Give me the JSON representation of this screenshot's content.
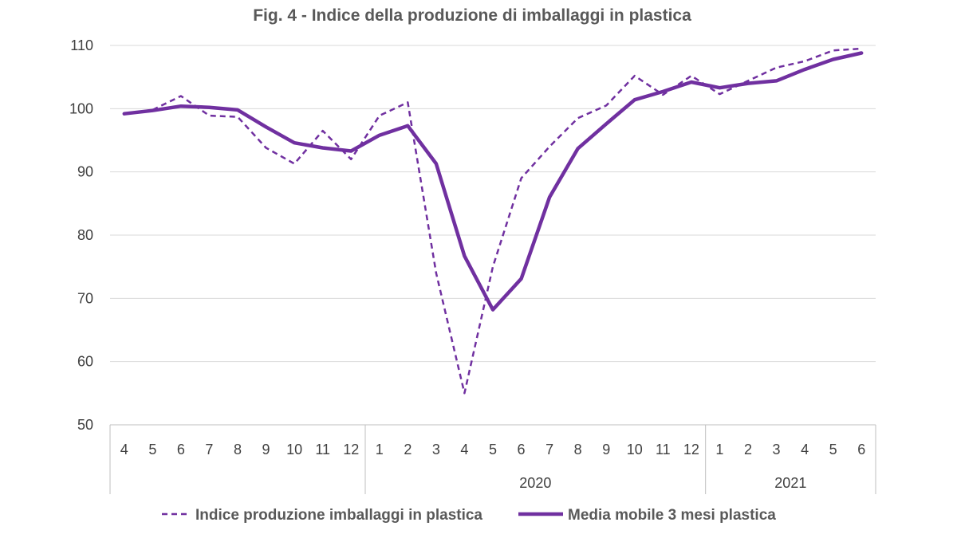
{
  "chart_data": {
    "type": "line",
    "title": "Fig. 4  - Indice della produzione di imballaggi in plastica",
    "xlabel": "",
    "ylabel": "",
    "ylim": [
      50,
      110
    ],
    "yticks": [
      "50",
      "60",
      "70",
      "80",
      "90",
      "100",
      "110"
    ],
    "grid": true,
    "legend_position": "bottom",
    "categories": [
      "4",
      "5",
      "6",
      "7",
      "8",
      "9",
      "10",
      "11",
      "12",
      "1",
      "2",
      "3",
      "4",
      "5",
      "6",
      "7",
      "8",
      "9",
      "10",
      "11",
      "12",
      "1",
      "2",
      "3",
      "4",
      "5",
      "6"
    ],
    "year_groups": [
      {
        "label": "",
        "count": 9
      },
      {
        "label": "2020",
        "count": 12
      },
      {
        "label": "2021",
        "count": 6
      }
    ],
    "series": [
      {
        "name": "Indice produzione imballaggi in plastica",
        "color": "#7030a0",
        "style": "dashed",
        "values": [
          99.2,
          99.8,
          102.0,
          98.9,
          98.7,
          93.8,
          91.3,
          96.5,
          92.0,
          98.9,
          101.0,
          74.0,
          55.0,
          75.0,
          89.0,
          94.0,
          98.5,
          100.5,
          105.2,
          102.2,
          105.2,
          102.3,
          104.4,
          106.5,
          107.5,
          109.2,
          109.5
        ],
        "legend_label": "Indice produzione imballaggi in plastica"
      },
      {
        "name": "Media mobile 3 mesi plastica",
        "color": "#7030a0",
        "style": "solid",
        "values": [
          99.2,
          99.7,
          100.4,
          100.2,
          99.8,
          97.1,
          94.6,
          93.8,
          93.3,
          95.8,
          97.3,
          91.3,
          76.7,
          68.2,
          73.1,
          86.0,
          93.7,
          97.6,
          101.4,
          102.7,
          104.2,
          103.3,
          104.0,
          104.4,
          106.2,
          107.8,
          108.8
        ],
        "legend_label": "Media mobile 3 mesi plastica"
      }
    ]
  }
}
